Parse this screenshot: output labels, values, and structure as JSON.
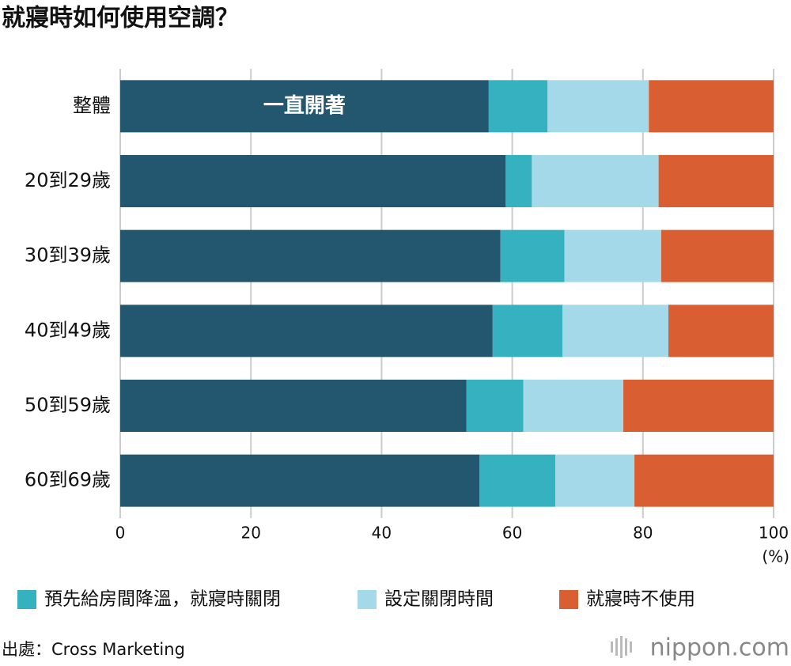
{
  "chart_data": {
    "type": "stacked-bar-horizontal",
    "title": "就寢時如何使用空調？",
    "categories": [
      "整體",
      "20到29歲",
      "30到39歲",
      "40到49歲",
      "50到59歲",
      "60到69歲"
    ],
    "series": [
      {
        "name": "一直開著",
        "color": "#23566f",
        "values": [
          56.4,
          59.0,
          58.2,
          57.0,
          53.0,
          55.0
        ]
      },
      {
        "name": "預先給房間降溫，就寢時關閉",
        "color": "#35b1c0",
        "values": [
          9.0,
          4.0,
          9.8,
          10.7,
          8.7,
          11.6
        ]
      },
      {
        "name": "設定關閉時間",
        "color": "#a3d9e8",
        "values": [
          15.5,
          19.4,
          14.8,
          16.2,
          15.3,
          12.1
        ]
      },
      {
        "name": "就寢時不使用",
        "color": "#d95f33",
        "values": [
          19.1,
          17.6,
          17.2,
          16.1,
          23.0,
          21.3
        ]
      }
    ],
    "xlim": [
      0,
      100
    ],
    "xticks": [
      0,
      20,
      40,
      60,
      80,
      100
    ],
    "x_label": "(%)",
    "grid": true,
    "source": "出處：Cross Marketing",
    "logo": "nippon.com"
  }
}
